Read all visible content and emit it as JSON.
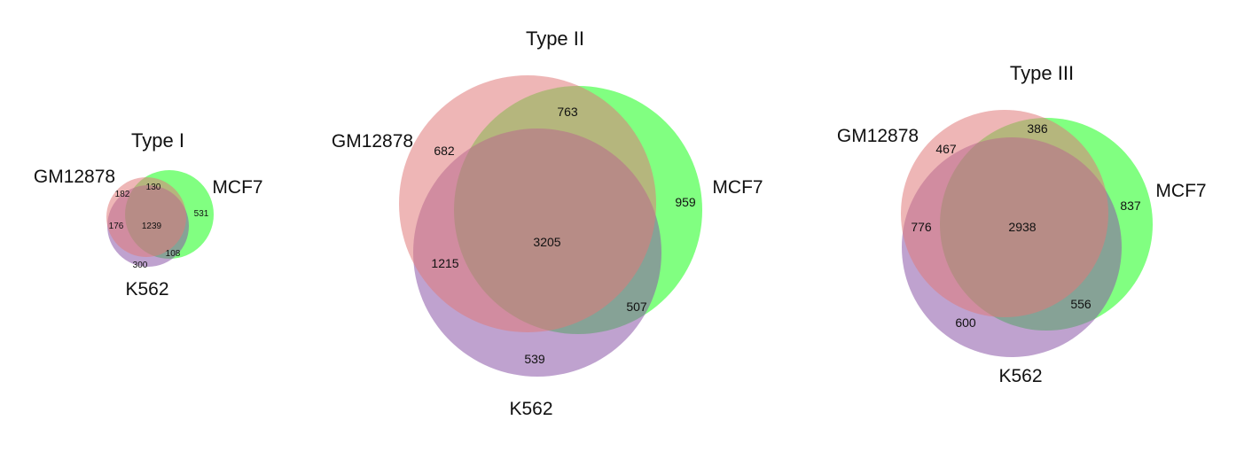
{
  "venn": {
    "colors": {
      "gm12878": "#e07a7a",
      "mcf7": "#33ff33",
      "k562": "#8a55a8"
    },
    "panels": [
      {
        "title": "Type I",
        "set_labels": {
          "gm12878": "GM12878",
          "mcf7": "MCF7",
          "k562": "K562"
        },
        "regions": {
          "gm12878_only": "182",
          "gm12878_mcf7": "130",
          "mcf7_only": "531",
          "gm12878_k562": "176",
          "all_three": "1239",
          "mcf7_k562": "108",
          "k562_only": "300"
        }
      },
      {
        "title": "Type II",
        "set_labels": {
          "gm12878": "GM12878",
          "mcf7": "MCF7",
          "k562": "K562"
        },
        "regions": {
          "gm12878_only": "682",
          "gm12878_mcf7": "763",
          "mcf7_only": "959",
          "gm12878_k562": "1215",
          "all_three": "3205",
          "mcf7_k562": "507",
          "k562_only": "539"
        }
      },
      {
        "title": "Type III",
        "set_labels": {
          "gm12878": "GM12878",
          "mcf7": "MCF7",
          "k562": "K562"
        },
        "regions": {
          "gm12878_only": "467",
          "gm12878_mcf7": "386",
          "mcf7_only": "837",
          "gm12878_k562": "776",
          "all_three": "2938",
          "mcf7_k562": "556",
          "k562_only": "600"
        }
      }
    ]
  }
}
